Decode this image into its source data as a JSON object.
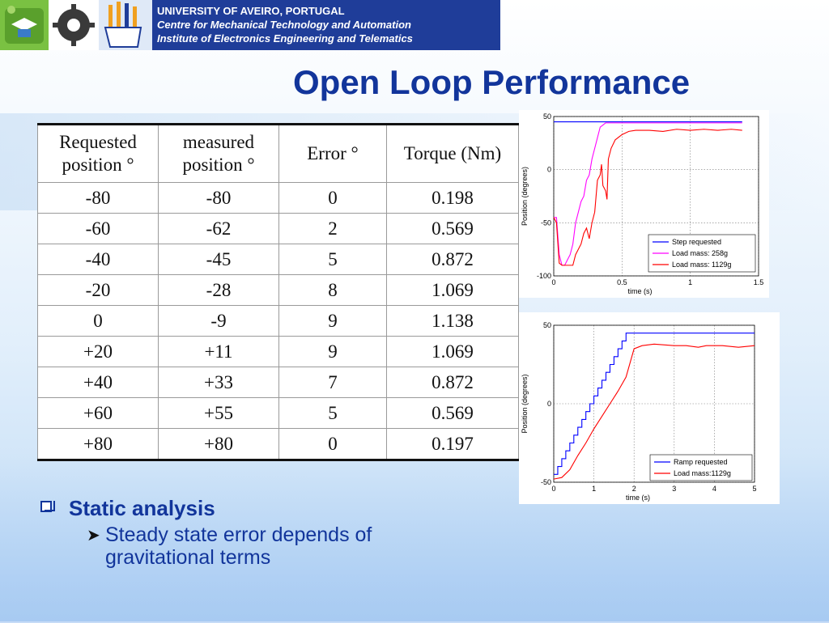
{
  "header": {
    "logos": [
      "university-logo-icon",
      "gear-logo-icon",
      "hand-logo-icon"
    ],
    "lines": [
      "UNIVERSITY OF AVEIRO, PORTUGAL",
      "Centre for Mechanical Technology and Automation",
      "Institute of Electronics Engineering and Telematics"
    ]
  },
  "title": "Open Loop Performance",
  "table": {
    "headers": [
      [
        "Requested",
        "position °"
      ],
      [
        "measured",
        "position °"
      ],
      [
        "Error °"
      ],
      [
        "Torque (Nm)"
      ]
    ],
    "rows": [
      [
        "-80",
        "-80",
        "0",
        "0.198"
      ],
      [
        "-60",
        "-62",
        "2",
        "0.569"
      ],
      [
        "-40",
        "-45",
        "5",
        "0.872"
      ],
      [
        "-20",
        "-28",
        "8",
        "1.069"
      ],
      [
        "0",
        "-9",
        "9",
        "1.138"
      ],
      [
        "+20",
        "+11",
        "9",
        "1.069"
      ],
      [
        "+40",
        "+33",
        "7",
        "0.872"
      ],
      [
        "+60",
        "+55",
        "5",
        "0.569"
      ],
      [
        "+80",
        "+80",
        "0",
        "0.197"
      ]
    ]
  },
  "chart_data": [
    {
      "type": "line",
      "xlabel": "time (s)",
      "ylabel": "Position (degrees)",
      "xlim": [
        0,
        1.5
      ],
      "ylim": [
        -100,
        50
      ],
      "xticks": [
        "0",
        "0.5",
        "1",
        "1.5"
      ],
      "yticks": [
        "-100",
        "-50",
        "0",
        "50"
      ],
      "grid": true,
      "legend_position": "bottom-right",
      "series": [
        {
          "name": "Step requested",
          "color": "#0000ff",
          "x": [
            0,
            0.38,
            0.4,
            1.38
          ],
          "y": [
            45,
            45,
            45,
            45
          ]
        },
        {
          "name": "Load mass: 258g",
          "color": "#ff00ff",
          "x": [
            0,
            0.02,
            0.04,
            0.06,
            0.08,
            0.1,
            0.12,
            0.14,
            0.16,
            0.18,
            0.2,
            0.22,
            0.24,
            0.26,
            0.28,
            0.3,
            0.32,
            0.34,
            0.36,
            0.38,
            0.5,
            1.38
          ],
          "y": [
            -45,
            -45,
            -80,
            -90,
            -90,
            -85,
            -80,
            -70,
            -50,
            -40,
            -30,
            -25,
            -10,
            -5,
            10,
            20,
            30,
            40,
            42,
            44,
            44,
            44
          ]
        },
        {
          "name": "Load mass: 1129g",
          "color": "#ff0000",
          "x": [
            0,
            0.02,
            0.04,
            0.06,
            0.1,
            0.14,
            0.16,
            0.18,
            0.2,
            0.22,
            0.24,
            0.26,
            0.28,
            0.3,
            0.32,
            0.34,
            0.35,
            0.36,
            0.38,
            0.39,
            0.4,
            0.42,
            0.45,
            0.5,
            0.55,
            0.6,
            0.7,
            0.8,
            0.9,
            1.0,
            1.1,
            1.2,
            1.3,
            1.38
          ],
          "y": [
            -45,
            -50,
            -88,
            -90,
            -90,
            -90,
            -80,
            -75,
            -70,
            -60,
            -55,
            -65,
            -50,
            -40,
            -10,
            -5,
            5,
            -15,
            -20,
            -28,
            10,
            20,
            28,
            33,
            36,
            37,
            37,
            36,
            38,
            37,
            38,
            37,
            38,
            37
          ]
        }
      ]
    },
    {
      "type": "line",
      "xlabel": "time (s)",
      "ylabel": "Position (degrees)",
      "xlim": [
        0,
        5
      ],
      "ylim": [
        -50,
        50
      ],
      "xticks": [
        "0",
        "1",
        "2",
        "3",
        "4",
        "5"
      ],
      "yticks": [
        "-50",
        "0",
        "50"
      ],
      "grid": true,
      "legend_position": "bottom-right",
      "series": [
        {
          "name": "Ramp requested",
          "color": "#0000ff",
          "stepped": true,
          "x": [
            0,
            0.1,
            0.2,
            0.3,
            0.4,
            0.5,
            0.6,
            0.7,
            0.8,
            0.9,
            1.0,
            1.1,
            1.2,
            1.3,
            1.4,
            1.5,
            1.6,
            1.7,
            1.8,
            5
          ],
          "y": [
            -45,
            -40,
            -35,
            -30,
            -25,
            -20,
            -15,
            -10,
            -5,
            0,
            5,
            10,
            15,
            20,
            25,
            30,
            35,
            40,
            45,
            45
          ]
        },
        {
          "name": "Load mass:1129g",
          "color": "#ff0000",
          "x": [
            0,
            0.2,
            0.4,
            0.6,
            0.8,
            1.0,
            1.2,
            1.4,
            1.6,
            1.8,
            2.0,
            2.2,
            2.5,
            3.0,
            3.3,
            3.6,
            3.8,
            4.2,
            4.6,
            5
          ],
          "y": [
            -48,
            -47,
            -42,
            -33,
            -25,
            -16,
            -8,
            0,
            8,
            17,
            35,
            37,
            38,
            37,
            37,
            36,
            37,
            37,
            36,
            37
          ]
        }
      ]
    }
  ],
  "bullets": {
    "main": "Static analysis",
    "sub": "Steady state error depends of gravitational terms"
  }
}
